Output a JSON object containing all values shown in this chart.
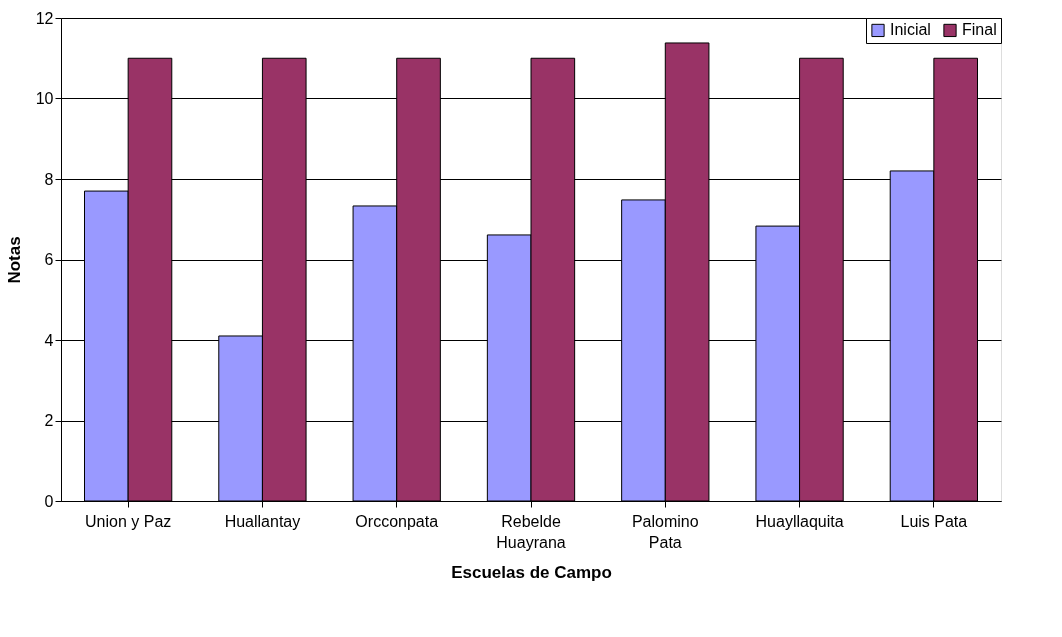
{
  "chart_data": {
    "type": "bar",
    "xlabel": "Escuelas de Campo",
    "ylabel": "Notas",
    "categories": [
      "Union y Paz",
      "Huallantay",
      "Orcconpata",
      "Rebelde\nHuayrana",
      "Palomino\nPata",
      "Huayllaquita",
      "Luis Pata"
    ],
    "series": [
      {
        "name": "Inicial",
        "color": "#9999ff",
        "values": [
          7.7,
          4.1,
          7.33,
          6.61,
          7.48,
          6.83,
          8.2
        ]
      },
      {
        "name": "Final",
        "color": "#993366",
        "values": [
          11,
          11,
          11,
          11,
          11.38,
          11,
          11
        ]
      }
    ],
    "ylim": [
      0,
      12
    ],
    "yticks": [
      0,
      2,
      4,
      6,
      8,
      10,
      12
    ],
    "grid": "y",
    "legend": "top right"
  }
}
